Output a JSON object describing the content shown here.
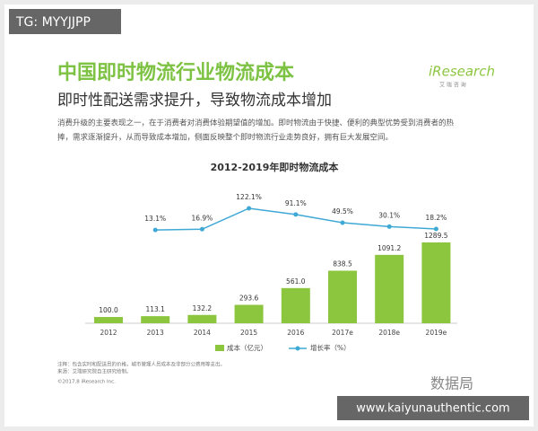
{
  "watermark_top": "TG: MYYJJPP",
  "logo": {
    "name": "iResearch",
    "sub": "艾 瑞 咨 询"
  },
  "header": {
    "title": "中国即时物流行业物流成本",
    "subtitle": "即时性配送需求提升，导致物流成本增加"
  },
  "description": [
    "消费升级的主要表现之一，在于消费者对消费体验期望值的增加。即时物流由于快捷、便利的典型优势受到消费者的热",
    "捧，需求逐渐提升，从而导致成本增加，侧面反映整个即时物流行业走势良好，拥有巨大发展空间。"
  ],
  "chart_data": {
    "type": "bar_line",
    "title": "2012-2019年即时物流成本",
    "categories": [
      "2012",
      "2013",
      "2014",
      "2015",
      "2016",
      "2017e",
      "2018e",
      "2019e"
    ],
    "series": [
      {
        "name": "成本（亿元）",
        "color": "#8cc63f",
        "values": [
          100.0,
          113.1,
          132.2,
          293.6,
          561.0,
          838.5,
          1091.2,
          1289.5
        ],
        "value_labels": [
          "100.0",
          "113.1",
          "132.2",
          "293.6",
          "561.0",
          "838.5",
          "1091.2",
          "1289.5"
        ]
      },
      {
        "name": "增长率（%）",
        "color": "#3fa9d5",
        "axis": "y2",
        "values": [
          null,
          13.1,
          16.9,
          122.1,
          91.1,
          49.5,
          30.1,
          18.2
        ],
        "value_labels": [
          null,
          "13.1%",
          "16.9%",
          "122.1%",
          "91.1%",
          "49.5%",
          "30.1%",
          "18.2%"
        ]
      }
    ]
  },
  "notes": [
    "注释：包含实时和配送员的价格，城市管理人员成本及非部分公费用等支出。",
    "来源：艾瑞研究院自主研究绘制。",
    "©2017.8 iResearch Inc."
  ],
  "watermark_mid": "数据局",
  "watermark_bottom": "www.kaiyunauthentic.com"
}
